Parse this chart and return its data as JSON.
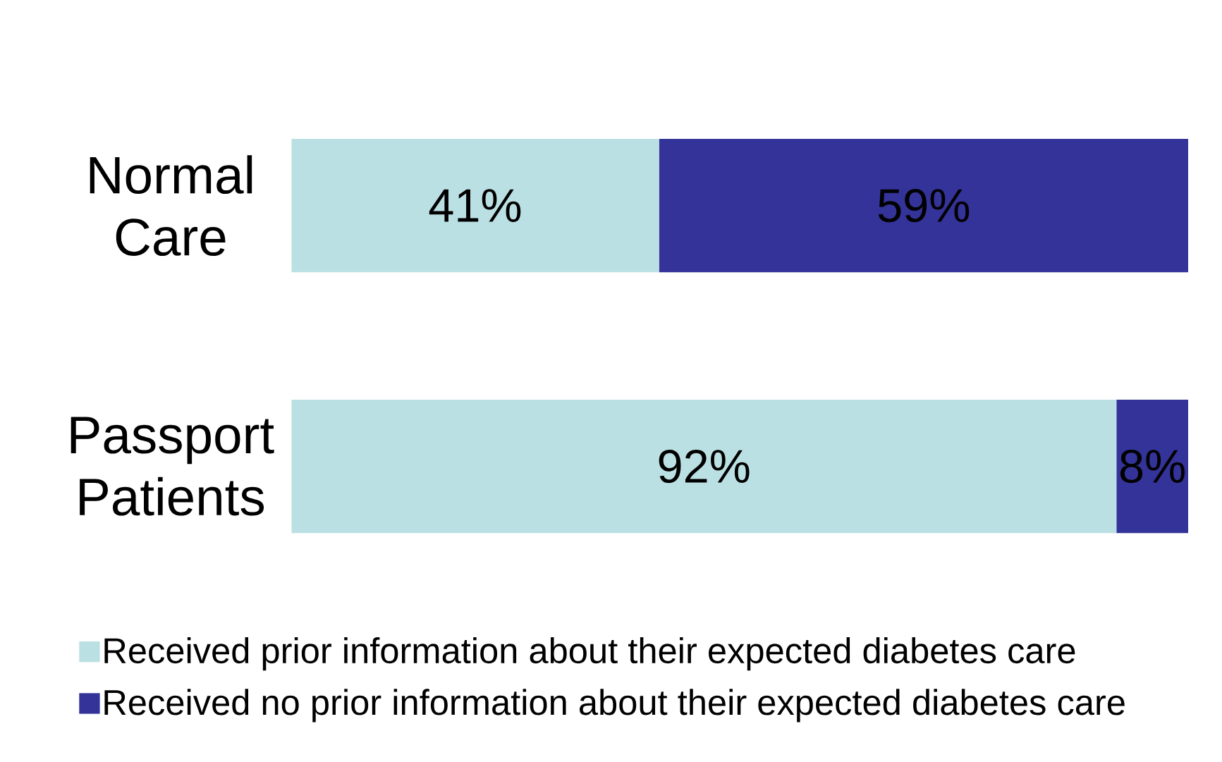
{
  "chart_data": {
    "type": "bar",
    "orientation": "horizontal",
    "stacked": true,
    "categories": [
      "Normal Care",
      "Passport Patients"
    ],
    "legend": "bottom",
    "series": [
      {
        "name": "Received prior information about their expected diabetes care",
        "color": "#bbe0e3",
        "values": [
          41,
          92
        ],
        "value_labels": [
          "41%",
          "92%"
        ]
      },
      {
        "name": "Received no prior information about their expected diabetes care",
        "color": "#333399",
        "values": [
          59,
          8
        ],
        "value_labels": [
          "59%",
          "8%"
        ]
      }
    ]
  }
}
